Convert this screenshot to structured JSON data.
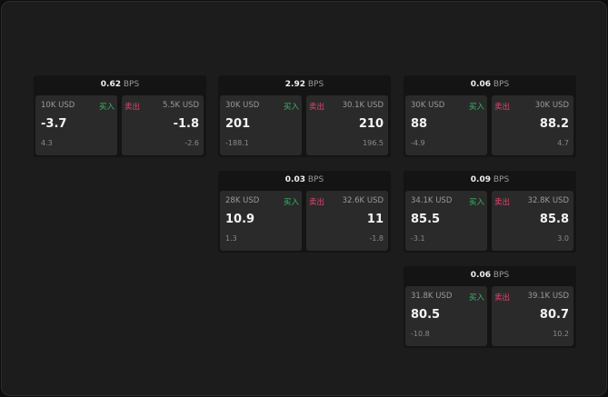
{
  "buy_label": "买入",
  "sell_label": "卖出",
  "unit": "BPS",
  "colors": {
    "buy": "#3cb56b",
    "sell": "#e0466e",
    "background": "#1c1c1c"
  },
  "cards": [
    {
      "bps": "0.62",
      "buy": {
        "size": "10K USD",
        "price": "-3.7",
        "change": "4.3"
      },
      "sell": {
        "size": "5.5K USD",
        "price": "-1.8",
        "change": "-2.6"
      }
    },
    {
      "bps": "2.92",
      "buy": {
        "size": "30K USD",
        "price": "201",
        "change": "-188.1"
      },
      "sell": {
        "size": "30.1K USD",
        "price": "210",
        "change": "196.5"
      }
    },
    {
      "bps": "0.06",
      "buy": {
        "size": "30K USD",
        "price": "88",
        "change": "-4.9"
      },
      "sell": {
        "size": "30K USD",
        "price": "88.2",
        "change": "4.7"
      }
    },
    {
      "bps": "0.03",
      "buy": {
        "size": "28K USD",
        "price": "10.9",
        "change": "1.3"
      },
      "sell": {
        "size": "32.6K USD",
        "price": "11",
        "change": "-1.8"
      }
    },
    {
      "bps": "0.09",
      "buy": {
        "size": "34.1K USD",
        "price": "85.5",
        "change": "-3.1"
      },
      "sell": {
        "size": "32.8K USD",
        "price": "85.8",
        "change": "3.0"
      }
    },
    {
      "bps": "0.06",
      "buy": {
        "size": "31.8K USD",
        "price": "80.5",
        "change": "-10.8"
      },
      "sell": {
        "size": "39.1K USD",
        "price": "80.7",
        "change": "10.2"
      }
    }
  ]
}
